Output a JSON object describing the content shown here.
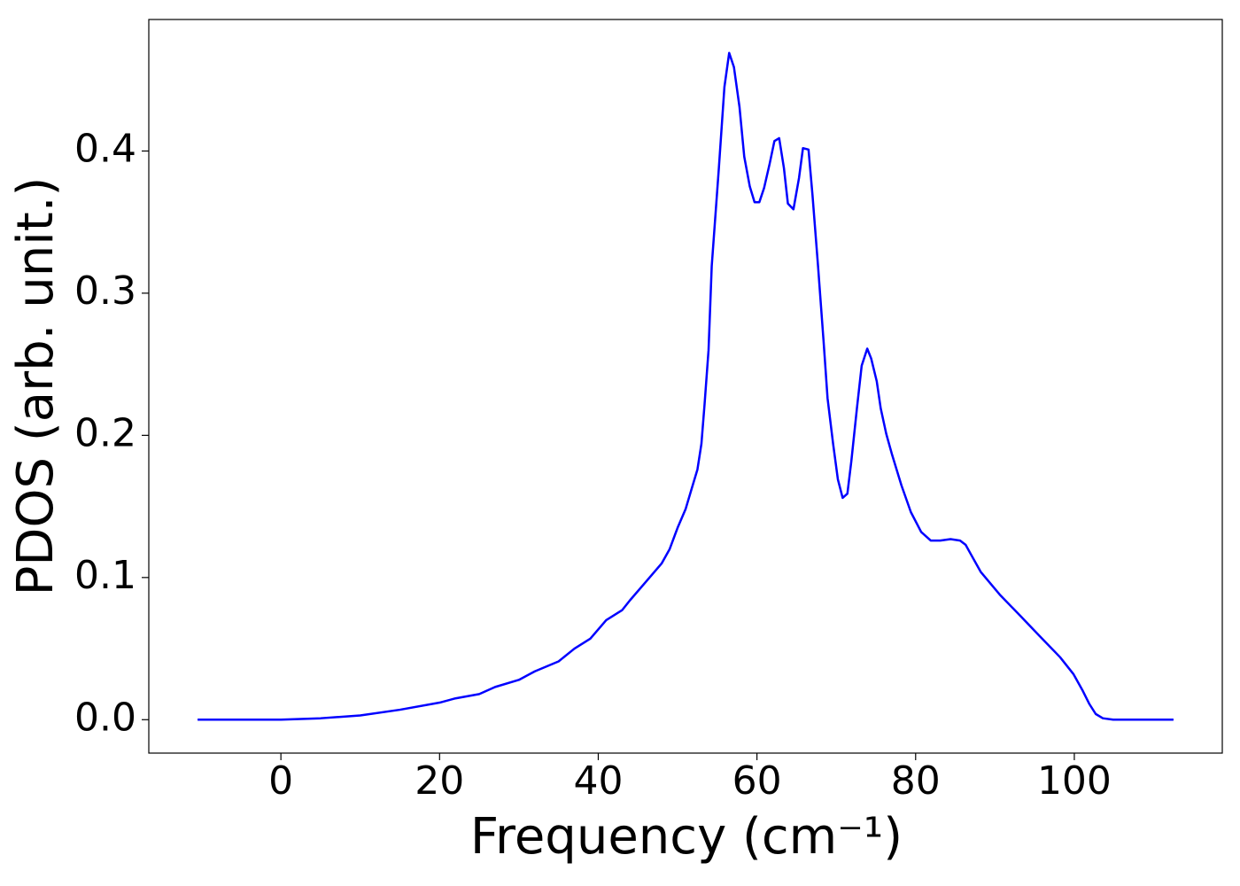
{
  "chart_data": {
    "type": "line",
    "xlabel": "Frequency (cm⁻¹)",
    "ylabel": "PDOS (arb. unit.)",
    "x": [
      -10.5,
      0,
      5,
      10,
      15,
      20,
      22,
      25,
      27,
      30,
      32,
      35,
      37,
      39,
      41,
      43,
      44,
      46,
      48,
      49,
      50,
      51,
      51.8,
      52.5,
      53,
      53.4,
      53.9,
      54.3,
      55.2,
      55.9,
      56.5,
      57.1,
      57.8,
      58.4,
      59.1,
      59.7,
      60.3,
      60.9,
      61.6,
      62.2,
      62.8,
      63.4,
      63.9,
      64.6,
      65.3,
      65.8,
      66.5,
      67.0,
      67.7,
      68.4,
      68.9,
      69.6,
      70.2,
      70.8,
      71.4,
      71.9,
      72.6,
      73.2,
      73.9,
      74.4,
      75.1,
      75.6,
      76.3,
      77.0,
      78.2,
      79.4,
      80.7,
      81.9,
      83.1,
      84.4,
      85.6,
      86.3,
      86.9,
      88.2,
      90.6,
      93.2,
      95.6,
      98.2,
      99.9,
      101.0,
      101.9,
      102.7,
      103.6,
      104.9,
      112.5
    ],
    "values": [
      0,
      0,
      0.001,
      0.003,
      0.007,
      0.012,
      0.015,
      0.018,
      0.023,
      0.028,
      0.034,
      0.041,
      0.05,
      0.057,
      0.07,
      0.077,
      0.084,
      0.097,
      0.11,
      0.12,
      0.135,
      0.148,
      0.163,
      0.176,
      0.194,
      0.222,
      0.26,
      0.319,
      0.388,
      0.445,
      0.469,
      0.459,
      0.431,
      0.396,
      0.375,
      0.364,
      0.364,
      0.374,
      0.391,
      0.407,
      0.409,
      0.388,
      0.363,
      0.359,
      0.381,
      0.402,
      0.401,
      0.369,
      0.319,
      0.266,
      0.226,
      0.194,
      0.169,
      0.156,
      0.159,
      0.182,
      0.219,
      0.249,
      0.261,
      0.254,
      0.238,
      0.219,
      0.201,
      0.187,
      0.165,
      0.146,
      0.132,
      0.126,
      0.126,
      0.127,
      0.126,
      0.123,
      0.117,
      0.104,
      0.088,
      0.073,
      0.059,
      0.044,
      0.032,
      0.021,
      0.011,
      0.004,
      0.001,
      0,
      0
    ],
    "color": "#0000ff",
    "xlim": [
      -16.65,
      118.65
    ],
    "ylim": [
      -0.0235,
      0.4925
    ],
    "xticks": [
      0,
      20,
      40,
      60,
      80,
      100
    ],
    "yticks": [
      {
        "value": 0,
        "label": "0.0"
      },
      0.1,
      0.2,
      0.3,
      0.4
    ],
    "grid": false
  }
}
